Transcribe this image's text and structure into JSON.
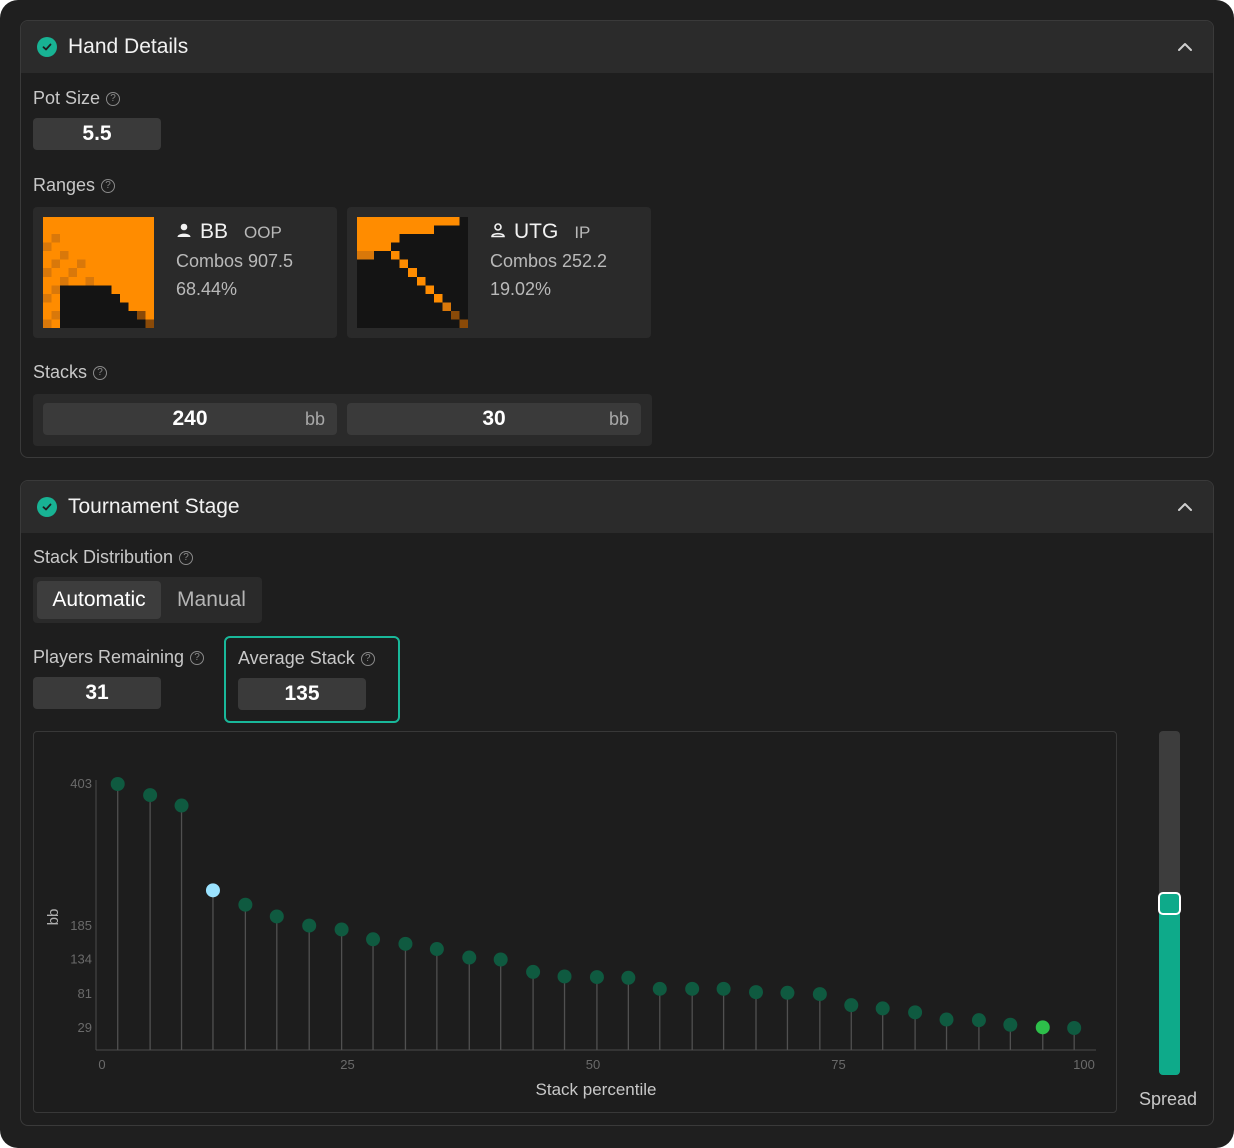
{
  "colors": {
    "accent": "#18b394",
    "range_orange": "#ff8c00",
    "range_dark": "#141414",
    "point_normal": "#0f5a40",
    "point_highlight": "#9be3ff",
    "point_current": "#2dbf4a"
  },
  "hand_details": {
    "title": "Hand Details",
    "pot_size": {
      "label": "Pot Size",
      "value": "5.5"
    },
    "ranges": {
      "label": "Ranges",
      "players": [
        {
          "name": "BB",
          "position": "OOP",
          "combos": "Combos 907.5",
          "percent": "68.44%",
          "icon": "user-icon"
        },
        {
          "name": "UTG",
          "position": "IP",
          "combos": "Combos 252.2",
          "percent": "19.02%",
          "icon": "user-outline-icon"
        }
      ]
    },
    "stacks": {
      "label": "Stacks",
      "items": [
        {
          "value": "240",
          "unit": "bb"
        },
        {
          "value": "30",
          "unit": "bb"
        }
      ]
    }
  },
  "tournament_stage": {
    "title": "Tournament Stage",
    "stack_distribution": {
      "label": "Stack Distribution",
      "options": [
        "Automatic",
        "Manual"
      ],
      "selected": "Automatic"
    },
    "players_remaining": {
      "label": "Players Remaining",
      "value": "31"
    },
    "average_stack": {
      "label": "Average Stack",
      "value": "135"
    },
    "spread": {
      "label": "Spread",
      "level": 0.5
    }
  },
  "chart_data": {
    "type": "scatter",
    "xlabel": "Stack percentile",
    "ylabel": "bb",
    "xticks": [
      "0",
      "25",
      "50",
      "75",
      "100"
    ],
    "yticks": [
      "403",
      "185",
      "134",
      "81",
      "29"
    ],
    "xlim": [
      0,
      100
    ],
    "points": [
      {
        "x": 1.6,
        "y": 403
      },
      {
        "x": 4.9,
        "y": 386
      },
      {
        "x": 8.1,
        "y": 370
      },
      {
        "x": 11.3,
        "y": 240,
        "highlight": "hero"
      },
      {
        "x": 14.6,
        "y": 218
      },
      {
        "x": 17.8,
        "y": 200
      },
      {
        "x": 21.1,
        "y": 186
      },
      {
        "x": 24.4,
        "y": 180
      },
      {
        "x": 27.6,
        "y": 165
      },
      {
        "x": 30.9,
        "y": 158
      },
      {
        "x": 34.1,
        "y": 150
      },
      {
        "x": 37.4,
        "y": 137
      },
      {
        "x": 40.6,
        "y": 134
      },
      {
        "x": 43.9,
        "y": 115
      },
      {
        "x": 47.1,
        "y": 108
      },
      {
        "x": 50.4,
        "y": 107
      },
      {
        "x": 53.6,
        "y": 106
      },
      {
        "x": 56.8,
        "y": 89
      },
      {
        "x": 60.1,
        "y": 89
      },
      {
        "x": 63.3,
        "y": 89
      },
      {
        "x": 66.6,
        "y": 84
      },
      {
        "x": 69.8,
        "y": 83
      },
      {
        "x": 73.1,
        "y": 81
      },
      {
        "x": 76.3,
        "y": 64
      },
      {
        "x": 79.5,
        "y": 59
      },
      {
        "x": 82.8,
        "y": 53
      },
      {
        "x": 86.0,
        "y": 42
      },
      {
        "x": 89.3,
        "y": 41
      },
      {
        "x": 92.5,
        "y": 34
      },
      {
        "x": 95.8,
        "y": 30,
        "highlight": "villain"
      },
      {
        "x": 99.0,
        "y": 29
      }
    ],
    "grid": false
  }
}
